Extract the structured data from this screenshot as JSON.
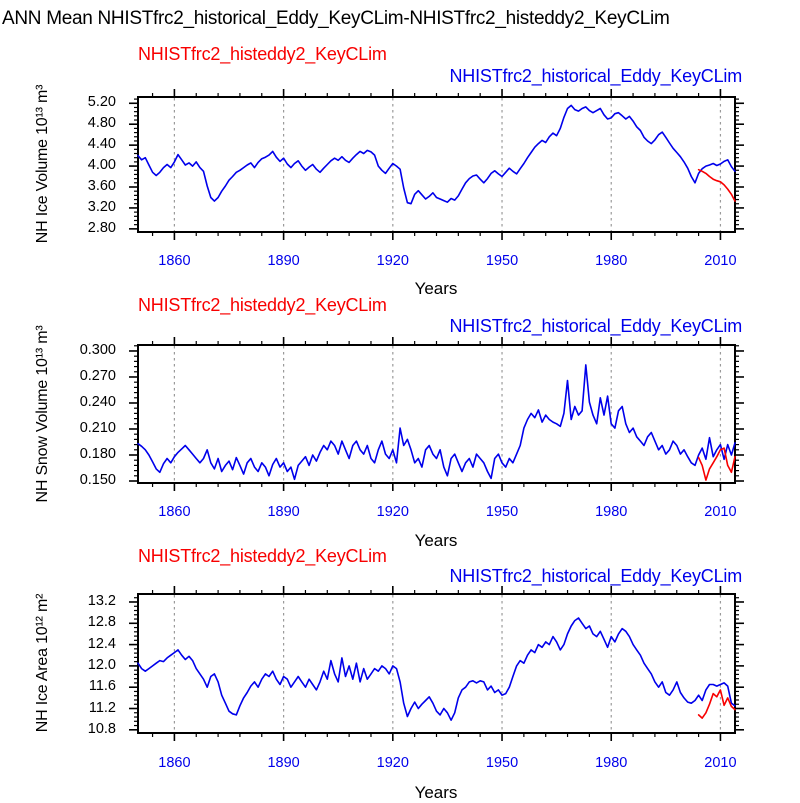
{
  "title": "ANN Mean NHISTfrc2_historical_Eddy_KeyCLim-NHISTfrc2_histeddy2_KeyCLim",
  "colors": {
    "series_red": "#f80000",
    "series_blue": "#0000eb",
    "x_tick_label": "#0000eb",
    "grid": "#9a9a9a",
    "axis": "#000000",
    "title_text": "#000000"
  },
  "x_axis": {
    "label": "Years",
    "tick_labels": [
      "1860",
      "1890",
      "1920",
      "1950",
      "1980",
      "2010"
    ],
    "tick_values": [
      1860,
      1890,
      1920,
      1950,
      1980,
      2010
    ],
    "range": [
      1850,
      2014
    ],
    "minor_step": 6
  },
  "panels": [
    {
      "legend_red": "NHISTfrc2_histeddy2_KeyCLim",
      "legend_blue": "NHISTfrc2_historical_Eddy_KeyCLim",
      "ylabel": "NH Ice Volume 10¹³ m³",
      "xlabel": "Years",
      "ytick_labels": [
        "5.20",
        "4.80",
        "4.40",
        "4.00",
        "3.60",
        "3.20",
        "2.80"
      ],
      "ytick_values": [
        5.2,
        4.8,
        4.4,
        4.0,
        3.6,
        3.2,
        2.8
      ]
    },
    {
      "legend_red": "NHISTfrc2_histeddy2_KeyCLim",
      "legend_blue": "NHISTfrc2_historical_Eddy_KeyCLim",
      "ylabel": "NH Snow Volume 10¹³ m³",
      "xlabel": "Years",
      "ytick_labels": [
        "0.300",
        "0.270",
        "0.240",
        "0.210",
        "0.180",
        "0.150"
      ],
      "ytick_values": [
        0.3,
        0.27,
        0.24,
        0.21,
        0.18,
        0.15
      ]
    },
    {
      "legend_red": "NHISTfrc2_histeddy2_KeyCLim",
      "legend_blue": "NHISTfrc2_historical_Eddy_KeyCLim",
      "ylabel": "NH Ice Area 10¹² m²",
      "xlabel": "Years",
      "ytick_labels": [
        "13.2",
        "12.8",
        "12.4",
        "12.0",
        "11.6",
        "11.2",
        "10.8"
      ],
      "ytick_values": [
        13.2,
        12.8,
        12.4,
        12.0,
        11.6,
        11.2,
        10.8
      ]
    }
  ],
  "chart_data": [
    {
      "type": "line",
      "panel": "top",
      "title": "NH Ice Volume",
      "xlabel": "Years",
      "ylabel": "NH Ice Volume 10^13 m^3",
      "x_range": [
        1850,
        2014
      ],
      "ylim": [
        2.74,
        5.32
      ],
      "yticks": [
        2.8,
        3.2,
        3.6,
        4.0,
        4.4,
        4.8,
        5.2
      ],
      "grid": "vertical-dashed",
      "legend_position": "top",
      "series": [
        {
          "name": "NHISTfrc2_historical_Eddy_KeyCLim",
          "color": "#0000eb",
          "x_start": 1850,
          "x_step": 1,
          "values": [
            4.2,
            4.12,
            4.16,
            4.02,
            3.88,
            3.82,
            3.88,
            3.97,
            4.03,
            3.97,
            4.08,
            4.22,
            4.12,
            4.02,
            4.06,
            4.0,
            4.08,
            3.97,
            3.9,
            3.62,
            3.4,
            3.33,
            3.4,
            3.52,
            3.62,
            3.73,
            3.8,
            3.88,
            3.92,
            3.97,
            4.02,
            4.06,
            3.97,
            4.07,
            4.14,
            4.17,
            4.21,
            4.28,
            4.17,
            4.09,
            4.15,
            4.04,
            3.97,
            4.05,
            4.1,
            4.0,
            3.92,
            3.98,
            4.03,
            3.94,
            3.88,
            3.96,
            4.03,
            4.1,
            4.15,
            4.11,
            4.18,
            4.11,
            4.07,
            4.15,
            4.22,
            4.28,
            4.24,
            4.3,
            4.27,
            4.21,
            4.0,
            3.92,
            3.86,
            3.96,
            4.05,
            4.0,
            3.94,
            3.58,
            3.3,
            3.28,
            3.46,
            3.53,
            3.45,
            3.37,
            3.42,
            3.49,
            3.4,
            3.37,
            3.34,
            3.31,
            3.38,
            3.35,
            3.43,
            3.56,
            3.68,
            3.76,
            3.81,
            3.83,
            3.75,
            3.68,
            3.76,
            3.86,
            3.91,
            3.85,
            3.8,
            3.88,
            3.96,
            3.9,
            3.85,
            3.95,
            4.05,
            4.16,
            4.26,
            4.36,
            4.43,
            4.49,
            4.45,
            4.56,
            4.63,
            4.58,
            4.72,
            4.93,
            5.1,
            5.16,
            5.08,
            5.05,
            5.1,
            5.13,
            5.06,
            5.02,
            5.06,
            5.1,
            4.98,
            4.9,
            4.92,
            5.0,
            5.02,
            4.96,
            4.9,
            4.95,
            4.86,
            4.75,
            4.68,
            4.55,
            4.48,
            4.43,
            4.5,
            4.6,
            4.65,
            4.55,
            4.44,
            4.34,
            4.26,
            4.18,
            4.08,
            3.96,
            3.8,
            3.68,
            3.86,
            3.95,
            4.0,
            4.02,
            4.05,
            4.01,
            4.04,
            4.09,
            4.12,
            3.99,
            3.9
          ]
        },
        {
          "name": "NHISTfrc2_histeddy2_KeyCLim",
          "color": "#f80000",
          "x_start": 2004,
          "x_step": 1,
          "values": [
            3.93,
            3.9,
            3.86,
            3.8,
            3.75,
            3.72,
            3.7,
            3.64,
            3.56,
            3.46,
            3.33
          ]
        }
      ]
    },
    {
      "type": "line",
      "panel": "middle",
      "title": "NH Snow Volume",
      "xlabel": "Years",
      "ylabel": "NH Snow Volume 10^13 m^3",
      "x_range": [
        1850,
        2014
      ],
      "ylim": [
        0.1477,
        0.3069
      ],
      "yticks": [
        0.15,
        0.18,
        0.21,
        0.24,
        0.27,
        0.3
      ],
      "grid": "vertical-dashed",
      "legend_position": "top",
      "series": [
        {
          "name": "NHISTfrc2_historical_Eddy_KeyCLim",
          "color": "#0000eb",
          "x_start": 1850,
          "x_step": 1,
          "values": [
            0.193,
            0.19,
            0.186,
            0.18,
            0.172,
            0.164,
            0.16,
            0.17,
            0.176,
            0.171,
            0.178,
            0.183,
            0.187,
            0.191,
            0.186,
            0.181,
            0.176,
            0.171,
            0.176,
            0.186,
            0.171,
            0.164,
            0.176,
            0.161,
            0.168,
            0.173,
            0.163,
            0.177,
            0.168,
            0.158,
            0.171,
            0.176,
            0.166,
            0.161,
            0.171,
            0.166,
            0.156,
            0.169,
            0.176,
            0.166,
            0.171,
            0.161,
            0.166,
            0.152,
            0.168,
            0.173,
            0.178,
            0.168,
            0.18,
            0.173,
            0.183,
            0.191,
            0.186,
            0.196,
            0.191,
            0.181,
            0.196,
            0.186,
            0.176,
            0.191,
            0.196,
            0.186,
            0.181,
            0.191,
            0.176,
            0.171,
            0.186,
            0.196,
            0.181,
            0.176,
            0.186,
            0.171,
            0.211,
            0.191,
            0.198,
            0.186,
            0.171,
            0.176,
            0.166,
            0.186,
            0.191,
            0.181,
            0.176,
            0.186,
            0.166,
            0.156,
            0.176,
            0.181,
            0.171,
            0.161,
            0.171,
            0.176,
            0.166,
            0.181,
            0.176,
            0.171,
            0.161,
            0.153,
            0.176,
            0.181,
            0.171,
            0.166,
            0.176,
            0.171,
            0.181,
            0.191,
            0.211,
            0.221,
            0.228,
            0.223,
            0.232,
            0.218,
            0.226,
            0.221,
            0.218,
            0.216,
            0.213,
            0.228,
            0.266,
            0.221,
            0.236,
            0.226,
            0.231,
            0.284,
            0.241,
            0.226,
            0.216,
            0.246,
            0.226,
            0.248,
            0.216,
            0.211,
            0.231,
            0.236,
            0.216,
            0.206,
            0.211,
            0.201,
            0.196,
            0.191,
            0.201,
            0.206,
            0.196,
            0.186,
            0.191,
            0.181,
            0.186,
            0.196,
            0.191,
            0.181,
            0.186,
            0.178,
            0.171,
            0.168,
            0.18,
            0.188,
            0.175,
            0.2,
            0.178,
            0.186,
            0.192,
            0.175,
            0.192,
            0.18,
            0.194
          ]
        },
        {
          "name": "NHISTfrc2_histeddy2_KeyCLim",
          "color": "#f80000",
          "x_start": 2004,
          "x_step": 1,
          "values": [
            0.177,
            0.168,
            0.151,
            0.164,
            0.171,
            0.178,
            0.186,
            0.188,
            0.168,
            0.16,
            0.178
          ]
        }
      ]
    },
    {
      "type": "line",
      "panel": "bottom",
      "title": "NH Ice Area",
      "xlabel": "Years",
      "ylabel": "NH Ice Area 10^12 m^2",
      "x_range": [
        1850,
        2014
      ],
      "ylim": [
        10.74,
        13.35
      ],
      "yticks": [
        10.8,
        11.2,
        11.6,
        12.0,
        12.4,
        12.8,
        13.2
      ],
      "grid": "vertical-dashed",
      "legend_position": "top",
      "series": [
        {
          "name": "NHISTfrc2_historical_Eddy_KeyCLim",
          "color": "#0000eb",
          "x_start": 1850,
          "x_step": 1,
          "values": [
            12.05,
            11.95,
            11.9,
            11.95,
            12.0,
            12.05,
            12.1,
            12.08,
            12.15,
            12.2,
            12.25,
            12.3,
            12.2,
            12.12,
            12.18,
            12.1,
            11.95,
            11.85,
            11.75,
            11.6,
            11.8,
            11.85,
            11.7,
            11.45,
            11.3,
            11.15,
            11.1,
            11.08,
            11.25,
            11.4,
            11.5,
            11.62,
            11.7,
            11.6,
            11.75,
            11.85,
            11.8,
            11.9,
            11.75,
            11.65,
            11.8,
            11.75,
            11.6,
            11.7,
            11.8,
            11.7,
            11.6,
            11.75,
            11.65,
            11.55,
            11.7,
            11.9,
            11.75,
            12.1,
            11.85,
            11.7,
            12.15,
            11.8,
            12.0,
            11.75,
            12.05,
            11.7,
            11.95,
            11.75,
            11.85,
            11.95,
            11.9,
            12.0,
            11.95,
            11.85,
            12.0,
            11.95,
            11.7,
            11.3,
            11.05,
            11.2,
            11.32,
            11.2,
            11.28,
            11.35,
            11.42,
            11.3,
            11.15,
            11.08,
            11.2,
            11.12,
            10.98,
            11.12,
            11.4,
            11.55,
            11.6,
            11.7,
            11.72,
            11.68,
            11.72,
            11.7,
            11.55,
            11.62,
            11.5,
            11.55,
            11.45,
            11.48,
            11.6,
            11.8,
            12.0,
            12.1,
            12.05,
            12.2,
            12.3,
            12.25,
            12.4,
            12.35,
            12.45,
            12.4,
            12.55,
            12.45,
            12.3,
            12.4,
            12.6,
            12.75,
            12.85,
            12.9,
            12.8,
            12.7,
            12.75,
            12.6,
            12.55,
            12.65,
            12.5,
            12.35,
            12.55,
            12.45,
            12.6,
            12.7,
            12.65,
            12.55,
            12.4,
            12.3,
            12.2,
            12.05,
            11.95,
            11.85,
            11.7,
            11.6,
            11.7,
            11.5,
            11.45,
            11.55,
            11.7,
            11.5,
            11.4,
            11.32,
            11.3,
            11.35,
            11.45,
            11.35,
            11.55,
            11.65,
            11.65,
            11.62,
            11.65,
            11.68,
            11.62,
            11.3,
            11.25
          ]
        },
        {
          "name": "NHISTfrc2_histeddy2_KeyCLim",
          "color": "#f80000",
          "x_start": 2004,
          "x_step": 1,
          "values": [
            11.08,
            11.02,
            11.12,
            11.28,
            11.48,
            11.42,
            11.55,
            11.26,
            11.4,
            11.24,
            11.18
          ]
        }
      ]
    }
  ]
}
